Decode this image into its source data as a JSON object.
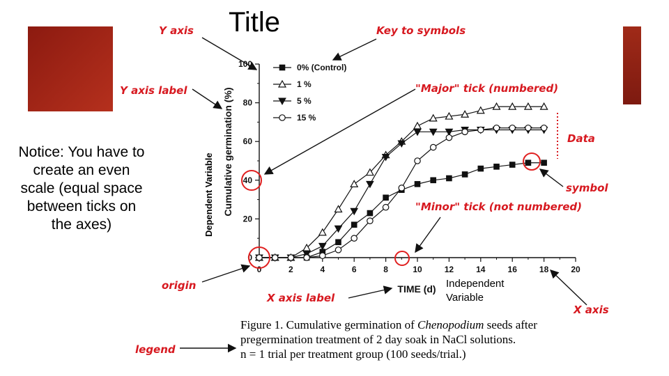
{
  "slide": {
    "title": "Title",
    "notice": "Notice: You have to create an even scale (equal space between ticks on the axes)",
    "dependent_variable": "Dependent Variable",
    "independent_variable": "Independent\nVariable"
  },
  "annotations": {
    "y_axis": "Y axis",
    "y_axis_label": "Y axis label",
    "key_to_symbols": "Key to symbols",
    "major_tick": "\"Major\" tick (numbered)",
    "data": "Data",
    "symbol": "symbol",
    "minor_tick": "\"Minor\" tick (not numbered)",
    "origin": "origin",
    "x_axis_label": "X axis label",
    "x_axis": "X axis",
    "legend": "legend"
  },
  "caption": {
    "line1_prefix": "Figure 1. Cumulative germination of ",
    "line1_species": "Chenopodium",
    "line1_suffix": " seeds after",
    "line2": "pregermination treatment of 2 day soak in NaCl solutions.",
    "line3": "n = 1 trial per treatment group (100 seeds/trial.)"
  },
  "colors": {
    "annotation": "#d71920",
    "circle": "#e02020",
    "plot": "#111111"
  },
  "chart_data": {
    "type": "line",
    "xlabel": "TIME (d)",
    "ylabel": "Cumulative germination (%)",
    "xlim": [
      0,
      20
    ],
    "ylim": [
      0,
      100
    ],
    "x_ticks": [
      0,
      2,
      4,
      6,
      8,
      10,
      12,
      14,
      16,
      18,
      20
    ],
    "y_ticks": [
      0,
      20,
      40,
      60,
      80,
      100
    ],
    "grid": false,
    "legend_position": "top-left",
    "series": [
      {
        "name": "0% (Control)",
        "marker": "filled-square",
        "x": [
          0,
          1,
          2,
          3,
          4,
          5,
          6,
          7,
          8,
          9,
          10,
          11,
          12,
          13,
          14,
          15,
          16,
          17,
          18
        ],
        "y": [
          0,
          0,
          0,
          0,
          3,
          8,
          17,
          23,
          31,
          35,
          38,
          40,
          41,
          43,
          46,
          47,
          48,
          49,
          49
        ]
      },
      {
        "name": "1 %",
        "marker": "open-triangle",
        "x": [
          0,
          1,
          2,
          3,
          4,
          5,
          6,
          7,
          8,
          9,
          10,
          11,
          12,
          13,
          14,
          15,
          16,
          17,
          18
        ],
        "y": [
          0,
          0,
          0,
          5,
          13,
          25,
          38,
          44,
          53,
          60,
          68,
          72,
          73,
          74,
          76,
          78,
          78,
          78,
          78
        ]
      },
      {
        "name": "5 %",
        "marker": "filled-triangle-down",
        "x": [
          0,
          1,
          2,
          3,
          4,
          5,
          6,
          7,
          8,
          9,
          10,
          11,
          12,
          13,
          14,
          15,
          16,
          17,
          18
        ],
        "y": [
          0,
          0,
          0,
          2,
          6,
          15,
          24,
          38,
          52,
          59,
          65,
          65,
          65,
          66,
          66,
          66,
          66,
          66,
          66
        ]
      },
      {
        "name": "15 %",
        "marker": "open-circle",
        "x": [
          0,
          1,
          2,
          3,
          4,
          5,
          6,
          7,
          8,
          9,
          10,
          11,
          12,
          13,
          14,
          15,
          16,
          17,
          18
        ],
        "y": [
          0,
          0,
          0,
          0,
          1,
          4,
          10,
          19,
          26,
          36,
          50,
          57,
          62,
          65,
          66,
          67,
          67,
          67,
          67
        ]
      }
    ]
  }
}
